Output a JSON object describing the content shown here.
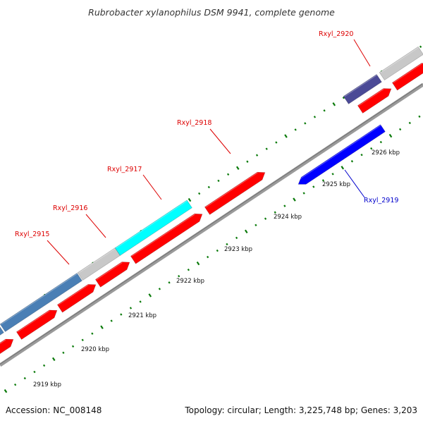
{
  "title": "Rubrobacter xylanophilus DSM 9941, complete genome",
  "footer": {
    "accession": "Accession: NC_008148",
    "topology": "Topology: circular; Length: 3,225,748 bp; Genes: 3,203"
  },
  "colors": {
    "cds_red": "#ff0000",
    "steelblue": "#4a7fb5",
    "gray_feature": "#c8c8c8",
    "cyan": "#00ffff",
    "navy": "#4b4a96",
    "blue": "#0000ff",
    "backbone": "#888888",
    "tick_green": "#0a7a0a",
    "label_red": "#dd0000",
    "label_blue": "#0000cc"
  },
  "scale_labels": [
    "2919 kbp",
    "2920 kbp",
    "2921 kbp",
    "2922 kbp",
    "2923 kbp",
    "2924 kbp",
    "2925 kbp",
    "2926 kbp"
  ],
  "gene_labels": [
    {
      "text": "Rxyl_2915",
      "color": "red"
    },
    {
      "text": "Rxyl_2916",
      "color": "red"
    },
    {
      "text": "Rxyl_2917",
      "color": "red"
    },
    {
      "text": "Rxyl_2918",
      "color": "red"
    },
    {
      "text": "Rxyl_2920",
      "color": "red"
    },
    {
      "text": "Rxyl_2919",
      "color": "blue"
    }
  ]
}
